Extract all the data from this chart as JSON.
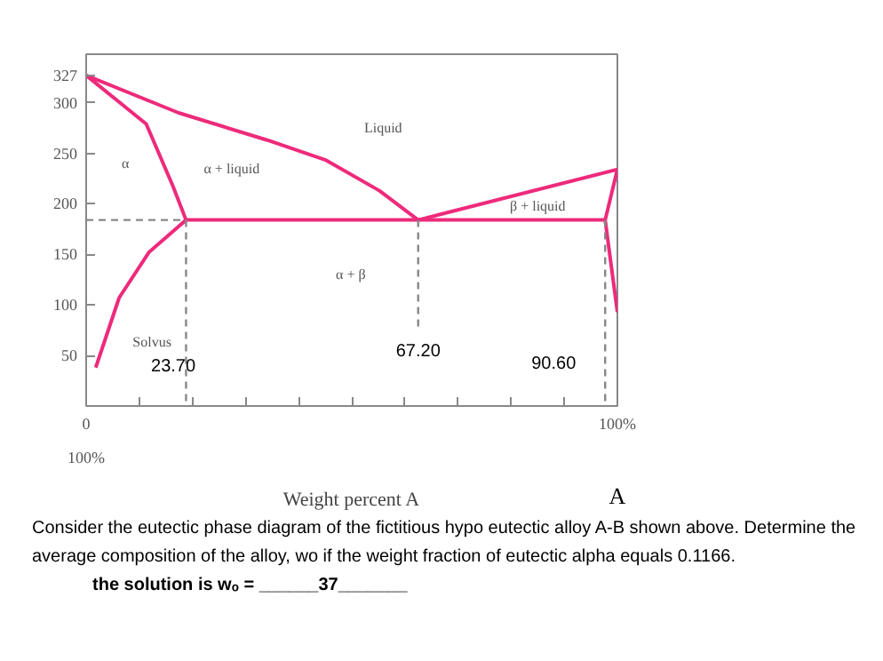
{
  "chart_data": {
    "type": "line",
    "xlabel": "Weight percent A",
    "grid": false,
    "marker": "none",
    "xlim": [
      0,
      100
    ],
    "ylim": [
      0,
      348
    ],
    "xticks": [
      0,
      {
        "value": 10,
        "label": null
      },
      {
        "value": 20,
        "label": null
      },
      {
        "value": 30,
        "label": null
      },
      {
        "value": 40,
        "label": null
      },
      {
        "value": 50,
        "label": null
      },
      {
        "value": 60,
        "label": null
      },
      {
        "value": 70,
        "label": null
      },
      {
        "value": 80,
        "label": null
      },
      {
        "value": 90,
        "label": null
      },
      {
        "value": 100,
        "label": "100%"
      }
    ],
    "yticks": [
      50,
      100,
      150,
      200,
      250,
      300,
      327
    ],
    "series": [
      {
        "color": "#ee2a7b",
        "line_style": "solid",
        "x": [
          0,
          17.4,
          34.1,
          45.2,
          55.2,
          62.5
        ],
        "values": [
          327,
          290,
          263,
          243,
          213,
          184
        ]
      },
      {
        "color": "#ee2a7b",
        "line_style": "solid",
        "x": [
          0,
          11.3,
          16.3,
          18.8
        ],
        "values": [
          327,
          279,
          218,
          184
        ]
      },
      {
        "color": "#ee2a7b",
        "line_style": "solid",
        "x": [
          18.8,
          11.8,
          6.2,
          1.8
        ],
        "values": [
          184,
          152,
          107,
          38
        ]
      },
      {
        "color": "#ee2a7b",
        "line_style": "solid",
        "x": [
          18.8,
          97.7
        ],
        "values": [
          184,
          184
        ]
      },
      {
        "color": "#ee2a7b",
        "line_style": "solid",
        "x": [
          62.5,
          100,
          97.7,
          100
        ],
        "values": [
          184,
          234,
          184,
          93
        ]
      },
      {
        "color": "#888888",
        "line_style": "dashed",
        "x": [
          0,
          18.8
        ],
        "values": [
          184,
          184
        ]
      },
      {
        "color": "#888888",
        "line_style": "dashed",
        "x": [
          18.8,
          18.8
        ],
        "values": [
          184,
          0
        ]
      },
      {
        "color": "#888888",
        "line_style": "dashed",
        "x": [
          62.5,
          62.5
        ],
        "values": [
          184,
          77
        ]
      },
      {
        "color": "#888888",
        "line_style": "dashed",
        "x": [
          97.7,
          97.7
        ],
        "values": [
          184,
          0
        ]
      }
    ],
    "annotations": [
      "100%",
      "A",
      "Liquid",
      "α + liquid",
      "α",
      "α + β",
      "β + liquid",
      "Solvus",
      "23.70",
      "67.20",
      "90.60",
      "Consider the eutectic phase diagram of the fictitious hypo eutectic alloy A-B shown above. Determine the average composition of the alloy, wo if the weight fraction of eutectic alpha equals 0.1166.",
      "the solution is wₒ =  ______37_______"
    ]
  }
}
